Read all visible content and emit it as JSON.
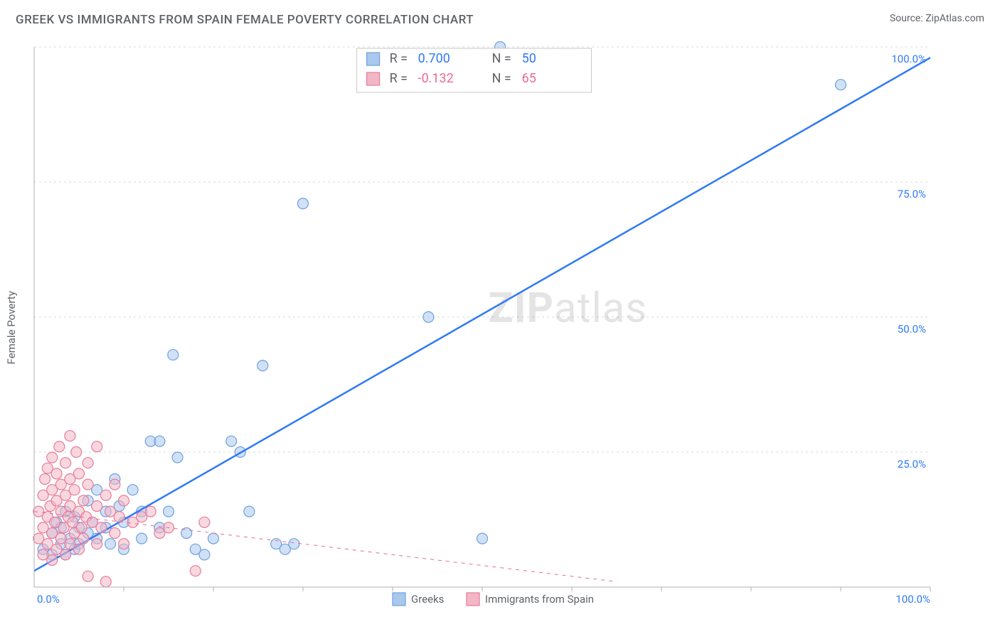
{
  "title": "GREEK VS IMMIGRANTS FROM SPAIN FEMALE POVERTY CORRELATION CHART",
  "source": "Source: ZipAtlas.com",
  "ylabel": "Female Poverty",
  "watermark": {
    "bold": "ZIP",
    "rest": "atlas"
  },
  "chart": {
    "type": "scatter-correlation",
    "background": "#ffffff",
    "grid_color": "#d8d8d8",
    "axis_color": "#b0b0b0",
    "tick_label_color": "#2f7af5",
    "text_color": "#5f6368",
    "xlim": [
      0,
      100
    ],
    "ylim": [
      0,
      100
    ],
    "x_ticks": [
      10,
      20,
      30,
      40,
      50,
      60,
      70,
      80,
      90,
      100
    ],
    "y_gridlines": [
      25,
      50,
      75,
      100
    ],
    "y_tick_labels": [
      "25.0%",
      "50.0%",
      "75.0%",
      "100.0%"
    ],
    "x_min_label": "0.0%",
    "x_max_label": "100.0%",
    "marker_radius": 7.5,
    "marker_stroke_width": 1.2,
    "line_width_solid": 2.5,
    "line_width_dashed": 1,
    "dash_pattern": "5 6",
    "title_fontsize": 17,
    "label_fontsize": 15,
    "stat_fontsize": 18
  },
  "series": [
    {
      "name": "Greeks",
      "color_fill": "#a9c8ee",
      "color_stroke": "#6fa0de",
      "line_color": "#2f7af5",
      "stat_color": "#2f7af5",
      "R": "0.700",
      "N": "50",
      "trend": {
        "x1": 0,
        "y1": 3,
        "x2": 100,
        "y2": 98,
        "style": "solid"
      },
      "points": [
        [
          1,
          7
        ],
        [
          2,
          10
        ],
        [
          2,
          6
        ],
        [
          2.5,
          12
        ],
        [
          3,
          8
        ],
        [
          3,
          11
        ],
        [
          3.5,
          14
        ],
        [
          3.5,
          6
        ],
        [
          4,
          9
        ],
        [
          4.5,
          13
        ],
        [
          4.5,
          7
        ],
        [
          5,
          11
        ],
        [
          5,
          8
        ],
        [
          6,
          10
        ],
        [
          6,
          16
        ],
        [
          6.5,
          12
        ],
        [
          7,
          9
        ],
        [
          7,
          18
        ],
        [
          8,
          14
        ],
        [
          8,
          11
        ],
        [
          8.5,
          8
        ],
        [
          9,
          20
        ],
        [
          9.5,
          15
        ],
        [
          10,
          12
        ],
        [
          10,
          7
        ],
        [
          11,
          18
        ],
        [
          12,
          9
        ],
        [
          12,
          14
        ],
        [
          13,
          27
        ],
        [
          14,
          27
        ],
        [
          14,
          11
        ],
        [
          15,
          14
        ],
        [
          15.5,
          43
        ],
        [
          16,
          24
        ],
        [
          17,
          10
        ],
        [
          18,
          7
        ],
        [
          19,
          6
        ],
        [
          20,
          9
        ],
        [
          22,
          27
        ],
        [
          23,
          25
        ],
        [
          24,
          14
        ],
        [
          25.5,
          41
        ],
        [
          27,
          8
        ],
        [
          28,
          7
        ],
        [
          29,
          8
        ],
        [
          30,
          71
        ],
        [
          44,
          50
        ],
        [
          50,
          9
        ],
        [
          52,
          100
        ],
        [
          90,
          93
        ]
      ]
    },
    {
      "name": "Immigrants from Spain",
      "color_fill": "#f3b6c4",
      "color_stroke": "#e77c9a",
      "line_color": "#ea6b8e",
      "stat_color": "#ea6b8e",
      "R": "-0.132",
      "N": "65",
      "trend": {
        "x1": 0,
        "y1": 14,
        "x2": 65,
        "y2": 1,
        "style": "dashed"
      },
      "points": [
        [
          0.5,
          9
        ],
        [
          0.5,
          14
        ],
        [
          1,
          6
        ],
        [
          1,
          11
        ],
        [
          1,
          17
        ],
        [
          1.2,
          20
        ],
        [
          1.5,
          8
        ],
        [
          1.5,
          13
        ],
        [
          1.5,
          22
        ],
        [
          1.8,
          15
        ],
        [
          2,
          5
        ],
        [
          2,
          10
        ],
        [
          2,
          18
        ],
        [
          2,
          24
        ],
        [
          2.3,
          12
        ],
        [
          2.5,
          7
        ],
        [
          2.5,
          16
        ],
        [
          2.5,
          21
        ],
        [
          2.8,
          26
        ],
        [
          3,
          9
        ],
        [
          3,
          14
        ],
        [
          3,
          19
        ],
        [
          3.3,
          11
        ],
        [
          3.5,
          6
        ],
        [
          3.5,
          17
        ],
        [
          3.5,
          23
        ],
        [
          3.8,
          13
        ],
        [
          4,
          8
        ],
        [
          4,
          15
        ],
        [
          4,
          20
        ],
        [
          4,
          28
        ],
        [
          4.3,
          12
        ],
        [
          4.5,
          10
        ],
        [
          4.5,
          18
        ],
        [
          4.7,
          25
        ],
        [
          5,
          7
        ],
        [
          5,
          14
        ],
        [
          5,
          21
        ],
        [
          5.3,
          11
        ],
        [
          5.5,
          9
        ],
        [
          5.5,
          16
        ],
        [
          5.8,
          13
        ],
        [
          6,
          2
        ],
        [
          6,
          19
        ],
        [
          6,
          23
        ],
        [
          6.5,
          12
        ],
        [
          7,
          8
        ],
        [
          7,
          15
        ],
        [
          7,
          26
        ],
        [
          7.5,
          11
        ],
        [
          8,
          17
        ],
        [
          8,
          1
        ],
        [
          8.5,
          14
        ],
        [
          9,
          10
        ],
        [
          9,
          19
        ],
        [
          9.5,
          13
        ],
        [
          10,
          16
        ],
        [
          10,
          8
        ],
        [
          11,
          12
        ],
        [
          12,
          13
        ],
        [
          13,
          14
        ],
        [
          14,
          10
        ],
        [
          15,
          11
        ],
        [
          18,
          3
        ],
        [
          19,
          12
        ]
      ]
    }
  ],
  "stats_box": {
    "rows": [
      {
        "swatch": 0,
        "R_label": "R =",
        "N_label": "N ="
      },
      {
        "swatch": 1,
        "R_label": "R =",
        "N_label": "N ="
      }
    ]
  },
  "bottom_legend": {
    "items": [
      {
        "series": 0
      },
      {
        "series": 1
      }
    ]
  }
}
